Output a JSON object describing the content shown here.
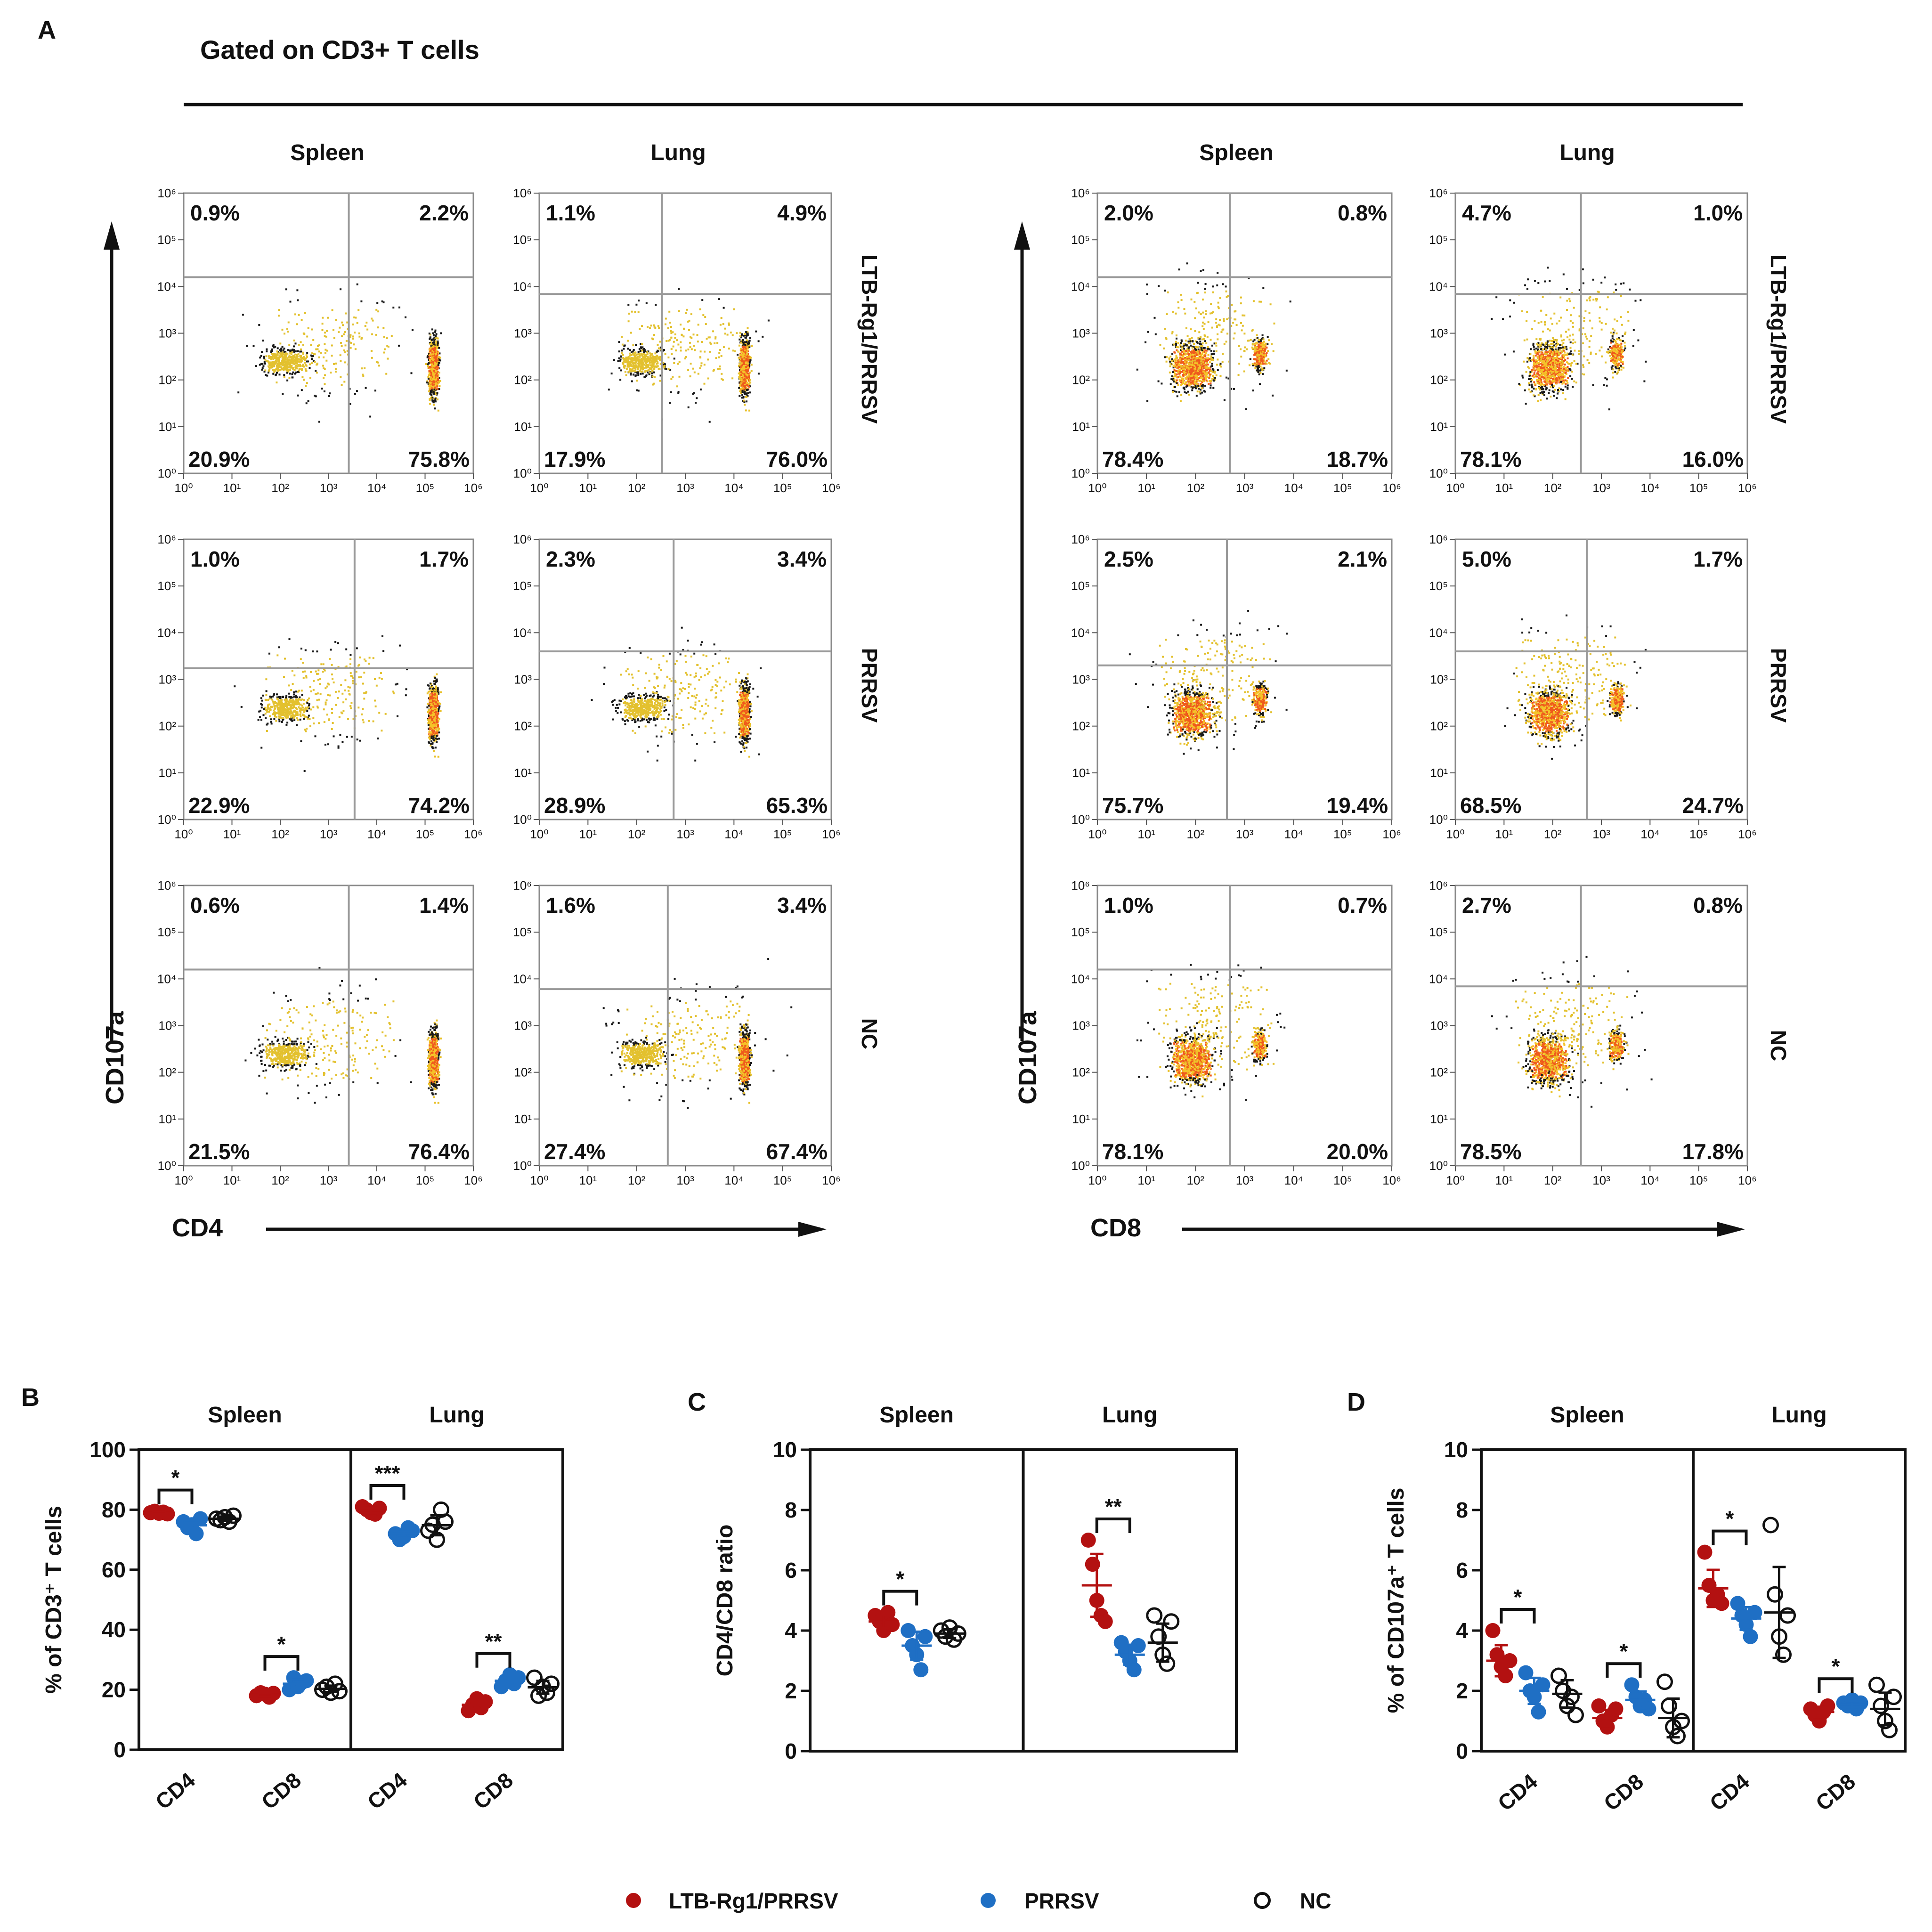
{
  "panel_labels": {
    "a": "A",
    "b": "B",
    "c": "C",
    "d": "D"
  },
  "flow": {
    "header": "Gated on CD3+ T cells",
    "col_labels": [
      "Spleen",
      "Lung",
      "Spleen",
      "Lung"
    ],
    "row_labels": [
      "LTB-Rg1/PRRSV",
      "PRRSV",
      "NC"
    ],
    "y_axis_label": "CD107a",
    "x_axis_labels": [
      "CD4",
      "CD8"
    ],
    "tick_labels": [
      "10⁰",
      "10¹",
      "10²",
      "10³",
      "10⁴",
      "10⁵",
      "10⁶"
    ]
  },
  "chart_data": [
    {
      "type": "scatter",
      "id": "A",
      "title": "Gated on CD3+ T cells",
      "xlabel": "CD4 / CD8",
      "ylabel": "CD107a",
      "axis_range_log10": [
        0,
        6
      ],
      "quadrant_percentages": {
        "order": [
          "upper-left",
          "upper-right",
          "lower-left",
          "lower-right"
        ],
        "CD4": {
          "Spleen": {
            "LTB-Rg1/PRRSV": [
              "0.9%",
              "2.2%",
              "20.9%",
              "75.8%"
            ],
            "PRRSV": [
              "1.0%",
              "1.7%",
              "22.9%",
              "74.2%"
            ],
            "NC": [
              "0.6%",
              "1.4%",
              "21.5%",
              "76.4%"
            ]
          },
          "Lung": {
            "LTB-Rg1/PRRSV": [
              "1.1%",
              "4.9%",
              "17.9%",
              "76.0%"
            ],
            "PRRSV": [
              "2.3%",
              "3.4%",
              "28.9%",
              "65.3%"
            ],
            "NC": [
              "1.6%",
              "3.4%",
              "27.4%",
              "67.4%"
            ]
          }
        },
        "CD8": {
          "Spleen": {
            "LTB-Rg1/PRRSV": [
              "2.0%",
              "0.8%",
              "78.4%",
              "18.7%"
            ],
            "PRRSV": [
              "2.5%",
              "2.1%",
              "75.7%",
              "19.4%"
            ],
            "NC": [
              "1.0%",
              "0.7%",
              "78.1%",
              "20.0%"
            ]
          },
          "Lung": {
            "LTB-Rg1/PRRSV": [
              "4.7%",
              "1.0%",
              "78.1%",
              "16.0%"
            ],
            "PRRSV": [
              "5.0%",
              "1.7%",
              "68.5%",
              "24.7%"
            ],
            "NC": [
              "2.7%",
              "0.8%",
              "78.5%",
              "17.8%"
            ]
          }
        }
      }
    },
    {
      "type": "scatter",
      "id": "B",
      "ylabel": "% of CD3⁺ T cells",
      "ylim": [
        0,
        100
      ],
      "yticks": [
        "0",
        "20",
        "40",
        "60",
        "80",
        "100"
      ],
      "groups": [
        "Spleen",
        "Lung"
      ],
      "categories": [
        "CD4",
        "CD8",
        "CD4",
        "CD8"
      ],
      "series": [
        {
          "name": "LTB-Rg1/PRRSV",
          "values": [
            [
              79,
              79.5,
              78.8,
              79.2,
              78.6
            ],
            [
              18,
              19,
              18.5,
              17.5,
              18.8
            ],
            [
              81,
              80,
              79,
              78.5,
              80.5
            ],
            [
              13,
              15,
              17,
              14,
              16
            ]
          ],
          "means": [
            79,
            18.3,
            79.8,
            15
          ]
        },
        {
          "name": "PRRSV",
          "values": [
            [
              76,
              74,
              75,
              72,
              77
            ],
            [
              20,
              24,
              21,
              22.5,
              23
            ],
            [
              72,
              70,
              71,
              74,
              73
            ],
            [
              21,
              23,
              25,
              22,
              24
            ]
          ],
          "means": [
            74.8,
            22,
            72,
            23
          ]
        },
        {
          "name": "NC",
          "values": [
            [
              77,
              76.5,
              77.5,
              76,
              78
            ],
            [
              20,
              21,
              19,
              22,
              19.5
            ],
            [
              73,
              75,
              70,
              80,
              76
            ],
            [
              24,
              18,
              21,
              19,
              22
            ]
          ],
          "means": [
            77,
            20.3,
            74.8,
            20.8
          ]
        }
      ],
      "significance": [
        "*",
        "*",
        "***",
        "**"
      ]
    },
    {
      "type": "scatter",
      "id": "C",
      "ylabel": "CD4/CD8 ratio",
      "ylim": [
        0,
        10
      ],
      "yticks": [
        "0",
        "2",
        "4",
        "6",
        "8",
        "10"
      ],
      "groups": [
        "Spleen",
        "Lung"
      ],
      "series": [
        {
          "name": "LTB-Rg1/PRRSV",
          "values": [
            [
              4.5,
              4.3,
              4.0,
              4.6,
              4.2
            ],
            [
              7.0,
              6.2,
              5.0,
              4.5,
              4.3
            ]
          ],
          "means": [
            4.3,
            5.5
          ]
        },
        {
          "name": "PRRSV",
          "values": [
            [
              4.0,
              3.5,
              3.2,
              2.7,
              3.8
            ],
            [
              3.6,
              3.3,
              3.0,
              2.7,
              3.5
            ]
          ],
          "means": [
            3.5,
            3.2
          ]
        },
        {
          "name": "NC",
          "values": [
            [
              4.0,
              3.8,
              4.1,
              3.7,
              3.9
            ],
            [
              4.5,
              3.8,
              3.2,
              2.9,
              4.3
            ]
          ],
          "means": [
            3.9,
            3.6
          ]
        }
      ],
      "significance": [
        "*",
        "**"
      ]
    },
    {
      "type": "scatter",
      "id": "D",
      "ylabel": "% of CD107a⁺ T cells",
      "ylim": [
        0,
        10
      ],
      "yticks": [
        "0",
        "2",
        "4",
        "6",
        "8",
        "10"
      ],
      "groups": [
        "Spleen",
        "Lung"
      ],
      "categories": [
        "CD4",
        "CD8",
        "CD4",
        "CD8"
      ],
      "series": [
        {
          "name": "LTB-Rg1/PRRSV",
          "values": [
            [
              4.0,
              3.2,
              2.8,
              2.5,
              3.0
            ],
            [
              1.5,
              1.0,
              0.8,
              1.2,
              1.4
            ],
            [
              6.6,
              5.5,
              5.0,
              5.2,
              4.9
            ],
            [
              1.4,
              1.2,
              1.0,
              1.3,
              1.5
            ]
          ],
          "means": [
            3.0,
            1.1,
            5.4,
            1.3
          ]
        },
        {
          "name": "PRRSV",
          "values": [
            [
              2.6,
              2.0,
              1.8,
              1.3,
              2.2
            ],
            [
              2.2,
              1.8,
              1.5,
              1.7,
              1.4
            ],
            [
              4.9,
              4.5,
              4.2,
              3.8,
              4.6
            ],
            [
              1.6,
              1.5,
              1.7,
              1.4,
              1.6
            ]
          ],
          "means": [
            2.0,
            1.7,
            4.4,
            1.55
          ]
        },
        {
          "name": "NC",
          "values": [
            [
              2.5,
              2.0,
              1.5,
              1.8,
              1.2
            ],
            [
              2.3,
              1.5,
              0.8,
              0.5,
              1.0
            ],
            [
              7.5,
              5.2,
              3.8,
              3.2,
              4.5
            ],
            [
              2.2,
              1.5,
              1.0,
              0.7,
              1.8
            ]
          ],
          "means": [
            1.9,
            1.1,
            4.6,
            1.4
          ]
        }
      ],
      "significance": [
        "*",
        "*",
        "*",
        "*"
      ]
    }
  ],
  "legend": [
    {
      "label": "LTB-Rg1/PRRSV",
      "color": "#b31111",
      "marker": "filled"
    },
    {
      "label": "PRRSV",
      "color": "#1f6fc4",
      "marker": "filled"
    },
    {
      "label": "NC",
      "color": "#111111",
      "marker": "open"
    }
  ]
}
